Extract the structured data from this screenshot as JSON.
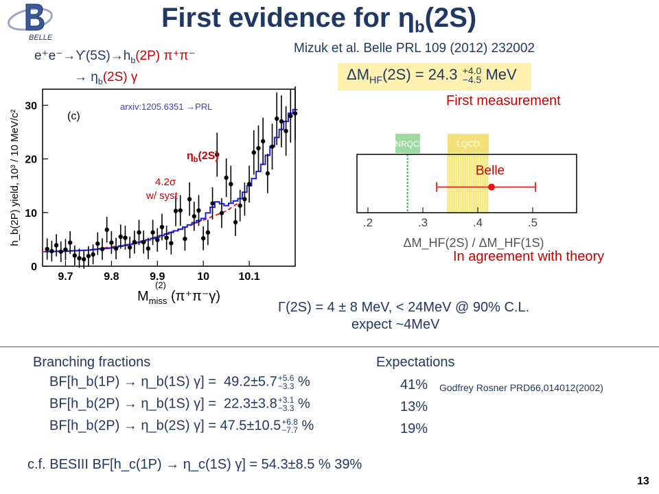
{
  "slide": {
    "title_main": "First evidence for ",
    "title_eta": "η",
    "title_sub": "b",
    "title_tail": "(2S)",
    "logo_text": "BELLE",
    "reference": "Mizuk et al. Belle PRL 109 (2012) 232002",
    "reaction_line1": "e⁺e⁻→ϒ(5S)→h",
    "reaction_line1_sub": "b",
    "reaction_line1_tail": "(2P) π⁺π⁻",
    "reaction_line2": "→ η",
    "reaction_line2_sub": "b",
    "reaction_line2_tail": "(2S) γ",
    "page_number": "13"
  },
  "left_plot": {
    "panel_label": "(c)",
    "arxiv": "arxiv:1205.6351 →PRL",
    "peak_label": "η",
    "peak_label_sub": "b",
    "peak_label_tail": "(2S)",
    "significance": "4.2σ",
    "significance_note": "w/ syst",
    "ylabel": "h_b(2P) yield, 10³ / 10 MeV/c²",
    "xlabel_main": "M",
    "xlabel_sup": "(2)",
    "xlabel_sub": "miss",
    "xlabel_tail": "(π⁺π⁻γ)"
  },
  "mhf": {
    "text_pre": "ΔM",
    "text_sub": "HF",
    "text_mid": "(2S) = 24.3",
    "err_up": "+4.0",
    "err_down": "−4.5",
    "unit": "MeV"
  },
  "first_measurement": "First measurement",
  "right_plot": {
    "band1_label": "pNRQCD",
    "band2_label": "LQCD",
    "point_label": "Belle",
    "xlabel": "ΔM_HF(2S) / ΔM_HF(1S)"
  },
  "agreement": "In agreement with theory",
  "width": {
    "text": "Γ(2S) = 4 ± 8 MeV,  < 24MeV @ 90% C.L.",
    "expect": "expect ~4MeV"
  },
  "branching": {
    "header": "Branching fractions",
    "exp_header": "Expectations",
    "rows": [
      {
        "label": "BF[h_b(1P) → η_b(1S) γ] =",
        "value": "49.2±5.7",
        "err_up": "+5.6",
        "err_down": "−3.3",
        "unit": "%",
        "expect": "41%"
      },
      {
        "label": "BF[h_b(2P) → η_b(1S) γ] =",
        "value": "22.3±3.8",
        "err_up": "+3.1",
        "err_down": "−3.3",
        "unit": "%",
        "expect": "13%"
      },
      {
        "label": "BF[h_b(2P) → η_b(2S) γ] =",
        "value": "47.5±10.5",
        "err_up": "+6.8",
        "err_down": "−7.7",
        "unit": "%",
        "expect": "19%"
      }
    ],
    "godfrey": "Godfrey Rosner PRD66,014012(2002)",
    "besiii": "c.f. BESIII  BF[h_c(1P) → η_c(1S) γ] = 54.3±8.5 %  39%"
  },
  "chart_data": [
    {
      "type": "scatter",
      "title": "",
      "xlabel": "M_miss^(2) (π⁺π⁻γ)",
      "ylabel": "h_b(2P) yield, 10³ / 10 MeV/c²",
      "xlim": [
        9.65,
        10.2
      ],
      "ylim": [
        0,
        33
      ],
      "xticks": [
        9.7,
        9.8,
        9.9,
        10,
        10.1
      ],
      "yticks": [
        0,
        10,
        20,
        30
      ],
      "points": [
        [
          9.66,
          3.2
        ],
        [
          9.67,
          2.8
        ],
        [
          9.68,
          3.9
        ],
        [
          9.69,
          2.7
        ],
        [
          9.7,
          3.1
        ],
        [
          9.71,
          4.4
        ],
        [
          9.72,
          2.0
        ],
        [
          9.73,
          1.5
        ],
        [
          9.74,
          1.3
        ],
        [
          9.75,
          1.9
        ],
        [
          9.76,
          2.2
        ],
        [
          9.77,
          4.2
        ],
        [
          9.78,
          3.2
        ],
        [
          9.79,
          6.8
        ],
        [
          9.8,
          4.4
        ],
        [
          9.81,
          3.3
        ],
        [
          9.82,
          5.5
        ],
        [
          9.83,
          5.3
        ],
        [
          9.84,
          3.5
        ],
        [
          9.85,
          4.5
        ],
        [
          9.86,
          6.3
        ],
        [
          9.87,
          4.5
        ],
        [
          9.88,
          3.3
        ],
        [
          9.89,
          6.3
        ],
        [
          9.9,
          4.9
        ],
        [
          9.91,
          7.3
        ],
        [
          9.92,
          5.3
        ],
        [
          9.93,
          4.3
        ],
        [
          9.94,
          10.3
        ],
        [
          9.95,
          10.4
        ],
        [
          9.96,
          5.1
        ],
        [
          9.97,
          12.5
        ],
        [
          9.98,
          9.3
        ],
        [
          9.99,
          10.4
        ],
        [
          10.0,
          5.2
        ],
        [
          10.01,
          6.3
        ],
        [
          10.02,
          11.7
        ],
        [
          10.03,
          20.8
        ],
        [
          10.04,
          9.9
        ],
        [
          10.05,
          16.5
        ],
        [
          10.06,
          15.3
        ],
        [
          10.07,
          8.2
        ],
        [
          10.08,
          11.3
        ],
        [
          10.09,
          12.5
        ],
        [
          10.1,
          15.3
        ],
        [
          10.11,
          21.2
        ],
        [
          10.12,
          22.0
        ],
        [
          10.13,
          23.3
        ],
        [
          10.14,
          17.3
        ],
        [
          10.15,
          22.3
        ],
        [
          10.16,
          27.5
        ],
        [
          10.17,
          27.0
        ],
        [
          10.18,
          25.2
        ],
        [
          10.19,
          28.0
        ],
        [
          10.2,
          28.5
        ]
      ],
      "fit": [
        [
          9.65,
          2.7
        ],
        [
          9.7,
          2.8
        ],
        [
          9.75,
          3.0
        ],
        [
          9.8,
          3.4
        ],
        [
          9.85,
          4.2
        ],
        [
          9.9,
          5.4
        ],
        [
          9.95,
          6.9
        ],
        [
          10.0,
          8.9
        ],
        [
          10.02,
          11.0
        ],
        [
          10.03,
          12.0
        ],
        [
          10.05,
          11.3
        ],
        [
          10.08,
          12.6
        ],
        [
          10.1,
          15.0
        ],
        [
          10.13,
          19.0
        ],
        [
          10.16,
          24.0
        ],
        [
          10.19,
          28.5
        ],
        [
          10.2,
          29.2
        ]
      ],
      "background": [
        [
          9.65,
          2.7
        ],
        [
          9.75,
          3.0
        ],
        [
          9.85,
          4.2
        ],
        [
          9.95,
          6.9
        ],
        [
          10.0,
          8.6
        ],
        [
          10.05,
          10.3
        ],
        [
          10.08,
          12.0
        ]
      ]
    },
    {
      "type": "scatter",
      "title": "",
      "xlabel": "ΔM_HF(2S) / ΔM_HF(1S)",
      "xlim": [
        0.18,
        0.58
      ],
      "xticks": [
        0.2,
        0.3,
        0.4,
        0.5
      ],
      "bands": [
        {
          "name": "pNRQCD",
          "range": [
            0.25,
            0.295
          ],
          "marker": 0.272
        },
        {
          "name": "LQCD",
          "range": [
            0.345,
            0.42
          ]
        }
      ],
      "points": [
        {
          "name": "Belle",
          "x": 0.425,
          "xerr_low": 0.1,
          "xerr_high": 0.08
        }
      ]
    }
  ]
}
